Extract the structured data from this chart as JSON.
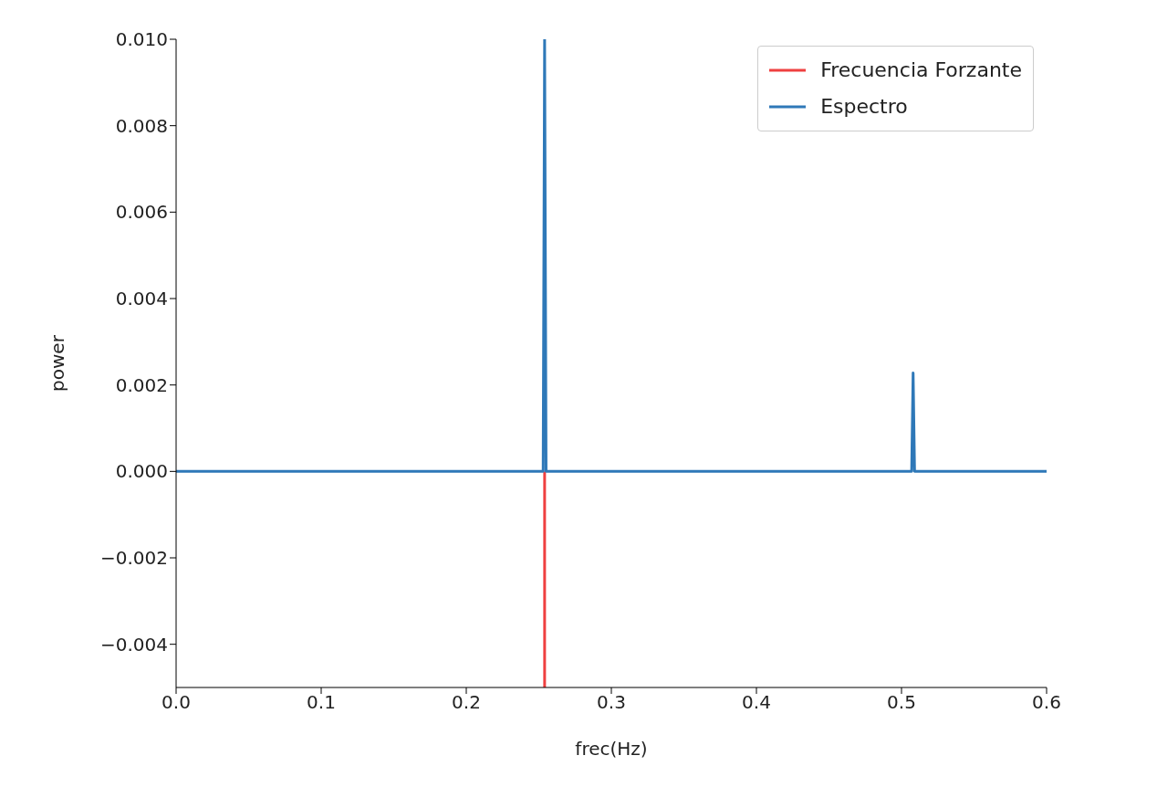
{
  "chart_data": {
    "type": "line",
    "xlabel": "frec(Hz)",
    "ylabel": "power",
    "xlim": [
      0,
      0.6
    ],
    "xticks": [
      {
        "value": 0,
        "label": "0.0"
      },
      0.1,
      0.2,
      0.3,
      0.4,
      0.5,
      {
        "value": 0.6,
        "label": "0.6"
      }
    ],
    "ylim": [
      -0.005,
      0.01
    ],
    "yticks": [
      {
        "value": -0.004,
        "label": "−0.004"
      },
      {
        "value": -0.002,
        "label": "−0.002"
      },
      {
        "value": 0,
        "label": "0.000"
      },
      {
        "value": 0.002,
        "label": "0.002"
      },
      {
        "value": 0.004,
        "label": "0.004"
      },
      {
        "value": 0.006,
        "label": "0.006"
      },
      {
        "value": 0.008,
        "label": "0.008"
      },
      {
        "value": 0.01,
        "label": "0.010"
      }
    ],
    "legend": "top right",
    "marker": "none",
    "line_style": "solid",
    "series": [
      {
        "name": "Frecuencia Forzante",
        "color": "#ef4040",
        "x": [
          0.254,
          0.254
        ],
        "values": [
          -0.005,
          0
        ]
      },
      {
        "name": "Espectro",
        "color": "#2e78b8",
        "x": [
          0,
          0.253,
          0.254,
          0.255,
          0.507,
          0.508,
          0.509,
          0.6
        ],
        "values": [
          0,
          0,
          0.01,
          0,
          0,
          0.00228,
          0,
          0
        ]
      }
    ]
  }
}
